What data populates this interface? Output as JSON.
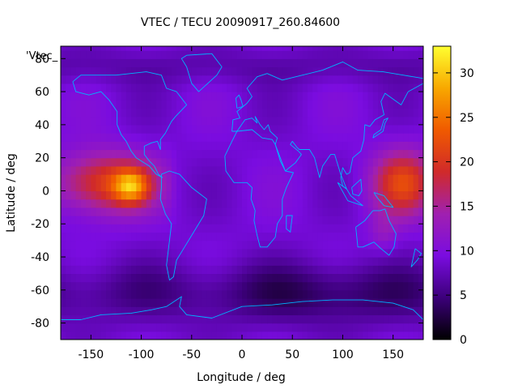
{
  "chart_data": {
    "type": "heatmap",
    "title": "VTEC / TECU 20090917_260.84600",
    "xlabel": "Longitude / deg",
    "ylabel": "Latitude / deg",
    "legend_label": "'Vtec_",
    "xlim": [
      -180,
      180
    ],
    "ylim": [
      -90,
      87.5
    ],
    "x_ticks": [
      -150,
      -100,
      -50,
      0,
      50,
      100,
      150
    ],
    "y_ticks": [
      -80,
      -60,
      -40,
      -20,
      0,
      20,
      40,
      60,
      80
    ],
    "colorbar": {
      "range": [
        0,
        33
      ],
      "ticks": [
        0,
        5,
        10,
        15,
        20,
        25,
        30
      ],
      "palette": [
        "#000000",
        "#3c007a",
        "#7a0ce0",
        "#a020b0",
        "#d02a2a",
        "#f05a00",
        "#f8a800",
        "#ffff30"
      ]
    },
    "grid": false,
    "values_note_free": true,
    "features": [
      {
        "name": "pacific-equatorial-peak",
        "lon": -110,
        "lat": 3,
        "value": 33
      },
      {
        "name": "pacific-anomaly-band",
        "lon": -150,
        "lat": 5,
        "value": 22
      },
      {
        "name": "western-pacific-peak",
        "lon": 155,
        "lat": 0,
        "value": 22
      },
      {
        "name": "background",
        "value": 9
      },
      {
        "name": "southern-minimum",
        "lon": 75,
        "lat": -65,
        "value": 3
      }
    ]
  },
  "colors": {
    "coastline": "#00b4ff"
  }
}
